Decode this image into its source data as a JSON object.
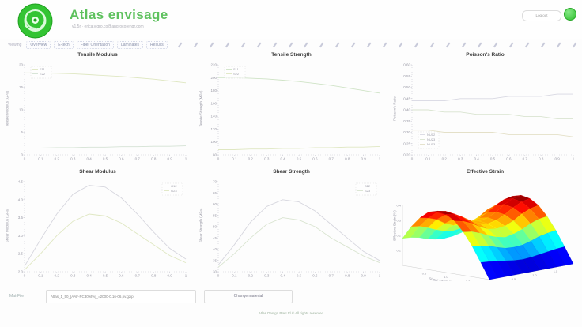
{
  "header": {
    "app_title": "Atlas envisage",
    "subtitle": "v1.5r · erica.vigro.co@angrocorengr.com",
    "logout_label": "Log out"
  },
  "nav": {
    "viewing_label": "Viewing",
    "tabs": [
      {
        "label": "Overview"
      },
      {
        "label": "E-tech"
      },
      {
        "label": "Fiber Orientation"
      },
      {
        "label": "Laminates"
      },
      {
        "label": "Results"
      }
    ],
    "slider_mark_count": 26
  },
  "charts": [
    {
      "type": "line",
      "title": "Tensile Modulus",
      "ylabel": "Tensile Modulus (GPa)",
      "ylim": [
        0,
        20
      ],
      "yticks": [
        0,
        5,
        10,
        15,
        20
      ],
      "ydec": 0,
      "x": [
        0,
        0.1,
        0.2,
        0.3,
        0.4,
        0.5,
        0.6,
        0.7,
        0.8,
        0.9,
        1
      ],
      "xticks": [
        0,
        0.1,
        0.2,
        0.3,
        0.4,
        0.5,
        0.6,
        0.7,
        0.8,
        0.9,
        1
      ],
      "legend": {
        "position": "top-left",
        "entries": [
          "E11",
          "E22"
        ]
      },
      "series": [
        {
          "name": "E11",
          "color": "#dfe7c2",
          "y": [
            18.2,
            18.2,
            18.1,
            18.0,
            17.8,
            17.6,
            17.4,
            17.1,
            16.8,
            16.4,
            16.0
          ]
        },
        {
          "name": "E22",
          "color": "#d4e2d4",
          "y": [
            1.5,
            1.5,
            1.6,
            1.6,
            1.7,
            1.7,
            1.8,
            1.8,
            1.9,
            1.9,
            2.0
          ]
        }
      ]
    },
    {
      "type": "line",
      "title": "Tensile Strength",
      "ylabel": "Tensile Strength (MPa)",
      "ylim": [
        80,
        220
      ],
      "yticks": [
        80,
        100,
        120,
        140,
        160,
        180,
        200,
        220
      ],
      "ydec": 0,
      "x": [
        0,
        0.1,
        0.2,
        0.3,
        0.4,
        0.5,
        0.6,
        0.7,
        0.8,
        0.9,
        1
      ],
      "xticks": [
        0,
        0.1,
        0.2,
        0.3,
        0.4,
        0.5,
        0.6,
        0.7,
        0.8,
        0.9,
        1
      ],
      "legend": {
        "position": "top-left",
        "entries": [
          "S11",
          "S22"
        ]
      },
      "series": [
        {
          "name": "S11",
          "color": "#cfe3c6",
          "y": [
            200,
            200,
            199,
            198,
            196,
            194,
            191,
            188,
            184,
            180,
            176
          ]
        },
        {
          "name": "S22",
          "color": "#dfe7c2",
          "y": [
            88,
            88,
            89,
            89,
            90,
            90,
            91,
            91,
            92,
            92,
            93
          ]
        }
      ]
    },
    {
      "type": "line",
      "title": "Poisson's Ratio",
      "ylabel": "Poisson's Ratio",
      "ylim": [
        0.2,
        0.6
      ],
      "yticks": [
        0.2,
        0.25,
        0.3,
        0.35,
        0.4,
        0.45,
        0.5,
        0.55,
        0.6
      ],
      "ydec": 2,
      "x": [
        0,
        0.1,
        0.2,
        0.3,
        0.4,
        0.5,
        0.6,
        0.7,
        0.8,
        0.9,
        1
      ],
      "xticks": [
        0,
        0.1,
        0.2,
        0.3,
        0.4,
        0.5,
        0.6,
        0.7,
        0.8,
        0.9,
        1
      ],
      "legend": {
        "position": "bottom-left",
        "entries": [
          "NU12",
          "NU23",
          "NU13"
        ]
      },
      "series": [
        {
          "name": "NU12",
          "color": "#d8d8e2",
          "y": [
            0.44,
            0.44,
            0.44,
            0.45,
            0.45,
            0.45,
            0.46,
            0.46,
            0.46,
            0.47,
            0.47
          ]
        },
        {
          "name": "NU23",
          "color": "#d9e4d0",
          "y": [
            0.4,
            0.4,
            0.39,
            0.39,
            0.38,
            0.38,
            0.38,
            0.37,
            0.37,
            0.36,
            0.36
          ]
        },
        {
          "name": "NU13",
          "color": "#e4e0c8",
          "y": [
            0.31,
            0.31,
            0.3,
            0.3,
            0.3,
            0.3,
            0.29,
            0.29,
            0.29,
            0.29,
            0.28
          ]
        }
      ]
    },
    {
      "type": "line",
      "title": "Shear Modulus",
      "ylabel": "Shear Modulus (GPa)",
      "ylim": [
        2,
        4.5
      ],
      "yticks": [
        2,
        2.5,
        3,
        3.5,
        4,
        4.5
      ],
      "ydec": 1,
      "x": [
        0,
        0.1,
        0.2,
        0.3,
        0.4,
        0.5,
        0.6,
        0.7,
        0.8,
        0.9,
        1
      ],
      "xticks": [
        0,
        0.1,
        0.2,
        0.3,
        0.4,
        0.5,
        0.6,
        0.7,
        0.8,
        0.9,
        1
      ],
      "legend": {
        "position": "top-right",
        "entries": [
          "G12",
          "G23"
        ]
      },
      "series": [
        {
          "name": "G12",
          "color": "#d6d6de",
          "y": [
            2.15,
            2.9,
            3.6,
            4.15,
            4.4,
            4.35,
            4.05,
            3.6,
            3.1,
            2.65,
            2.35
          ]
        },
        {
          "name": "G23",
          "color": "#dfe7c2",
          "y": [
            2.05,
            2.5,
            3.0,
            3.4,
            3.6,
            3.55,
            3.35,
            3.05,
            2.75,
            2.45,
            2.25
          ]
        }
      ]
    },
    {
      "type": "line",
      "title": "Shear Strength",
      "ylabel": "Shear Strength (MPa)",
      "ylim": [
        30,
        70
      ],
      "yticks": [
        30,
        35,
        40,
        45,
        50,
        55,
        60,
        65,
        70
      ],
      "ydec": 0,
      "x": [
        0,
        0.1,
        0.2,
        0.3,
        0.4,
        0.5,
        0.6,
        0.7,
        0.8,
        0.9,
        1
      ],
      "xticks": [
        0,
        0.1,
        0.2,
        0.3,
        0.4,
        0.5,
        0.6,
        0.7,
        0.8,
        0.9,
        1
      ],
      "legend": {
        "position": "top-right",
        "entries": [
          "S12",
          "S23"
        ]
      },
      "series": [
        {
          "name": "S12",
          "color": "#d6d6de",
          "y": [
            33,
            42,
            52,
            59,
            62,
            61,
            57,
            51,
            45,
            39,
            35
          ]
        },
        {
          "name": "S23",
          "color": "#d9e4d0",
          "y": [
            32,
            38,
            45,
            51,
            54,
            53,
            50,
            45,
            41,
            37,
            34
          ]
        }
      ]
    },
    {
      "type": "surface3d",
      "title": "Effective Strain",
      "ylabel": "Effective Strain (%)",
      "xlabel": "Shear strain (%)",
      "zlim": [
        0,
        0.4
      ],
      "zticks": [
        0.1,
        0.2,
        0.3,
        0.4
      ],
      "xticks": [
        0.5,
        1.0,
        1.5
      ],
      "yticks": [
        0.5,
        1.0,
        1.5
      ],
      "z": [
        [
          0.45,
          0.67,
          0.84,
          0.96,
          1.0,
          0.97,
          0.88,
          0.72,
          0.51,
          0.26,
          0.0
        ],
        [
          0.44,
          0.65,
          0.81,
          0.93,
          0.97,
          0.94,
          0.85,
          0.7,
          0.49,
          0.25,
          0.0
        ],
        [
          0.41,
          0.6,
          0.76,
          0.86,
          0.9,
          0.87,
          0.79,
          0.65,
          0.46,
          0.23,
          0.0
        ],
        [
          0.36,
          0.54,
          0.67,
          0.77,
          0.8,
          0.78,
          0.7,
          0.58,
          0.41,
          0.21,
          0.0
        ],
        [
          0.33,
          0.49,
          0.61,
          0.7,
          0.73,
          0.71,
          0.64,
          0.53,
          0.37,
          0.19,
          0.0
        ],
        [
          0.32,
          0.47,
          0.59,
          0.67,
          0.7,
          0.68,
          0.62,
          0.5,
          0.36,
          0.18,
          0.0
        ],
        [
          0.33,
          0.49,
          0.61,
          0.7,
          0.73,
          0.71,
          0.64,
          0.53,
          0.37,
          0.19,
          0.0
        ],
        [
          0.36,
          0.54,
          0.67,
          0.77,
          0.8,
          0.78,
          0.7,
          0.58,
          0.41,
          0.21,
          0.0
        ],
        [
          0.41,
          0.6,
          0.76,
          0.86,
          0.9,
          0.87,
          0.79,
          0.65,
          0.46,
          0.23,
          0.0
        ],
        [
          0.44,
          0.65,
          0.81,
          0.93,
          0.97,
          0.94,
          0.85,
          0.7,
          0.49,
          0.25,
          0.0
        ],
        [
          0.45,
          0.67,
          0.84,
          0.96,
          1.0,
          0.97,
          0.88,
          0.72,
          0.51,
          0.26,
          0.0
        ]
      ]
    }
  ],
  "bottom": {
    "matfile_label": "Mat-File",
    "matfile_value": "Atlas_1_50_[AAF-PC30wt%]_=2000-0.16-06.pv.gzip",
    "change_button_label": "Change material"
  },
  "footer": {
    "copyright": "Atlas Design Pte Ltd © All rights reserved"
  },
  "colors": {
    "brand_green": "#5ec15e",
    "logo_green": "#33c433",
    "status_green": "#2dbd2d"
  }
}
